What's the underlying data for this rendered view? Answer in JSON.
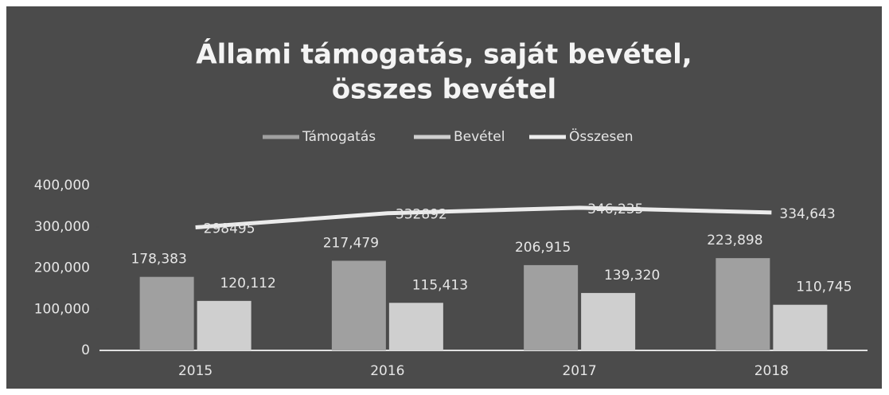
{
  "chart_data": {
    "type": "combo",
    "title": [
      "Állami támogatás, saját bevétel,",
      "összes bevétel"
    ],
    "categories": [
      "2015",
      "2016",
      "2017",
      "2018"
    ],
    "series": [
      {
        "name": "Támogatás",
        "type": "bar",
        "color": "#a0a0a0",
        "values": [
          178383,
          217479,
          206915,
          223898
        ],
        "value_labels": [
          "178,383",
          "217,479",
          "206,915",
          "223,898"
        ]
      },
      {
        "name": "Bevétel",
        "type": "bar",
        "color": "#cfcfcf",
        "values": [
          120112,
          115413,
          139320,
          110745
        ],
        "value_labels": [
          "120,112",
          "115,413",
          "139,320",
          "110,745"
        ]
      },
      {
        "name": "Összesen",
        "type": "line",
        "color": "#ececec",
        "values": [
          298495,
          332892,
          346235,
          334643
        ],
        "value_labels": [
          "298495",
          "332892",
          "346,235",
          "334,643"
        ]
      }
    ],
    "ylim": [
      0,
      400000
    ],
    "yticks": [
      0,
      {
        "value": 100000,
        "label": "100,000"
      },
      {
        "value": 200000,
        "label": "200,000"
      },
      {
        "value": 300000,
        "label": "300,000"
      },
      {
        "value": 400000,
        "label": "400,000"
      }
    ],
    "grid": false,
    "legend": "top"
  }
}
